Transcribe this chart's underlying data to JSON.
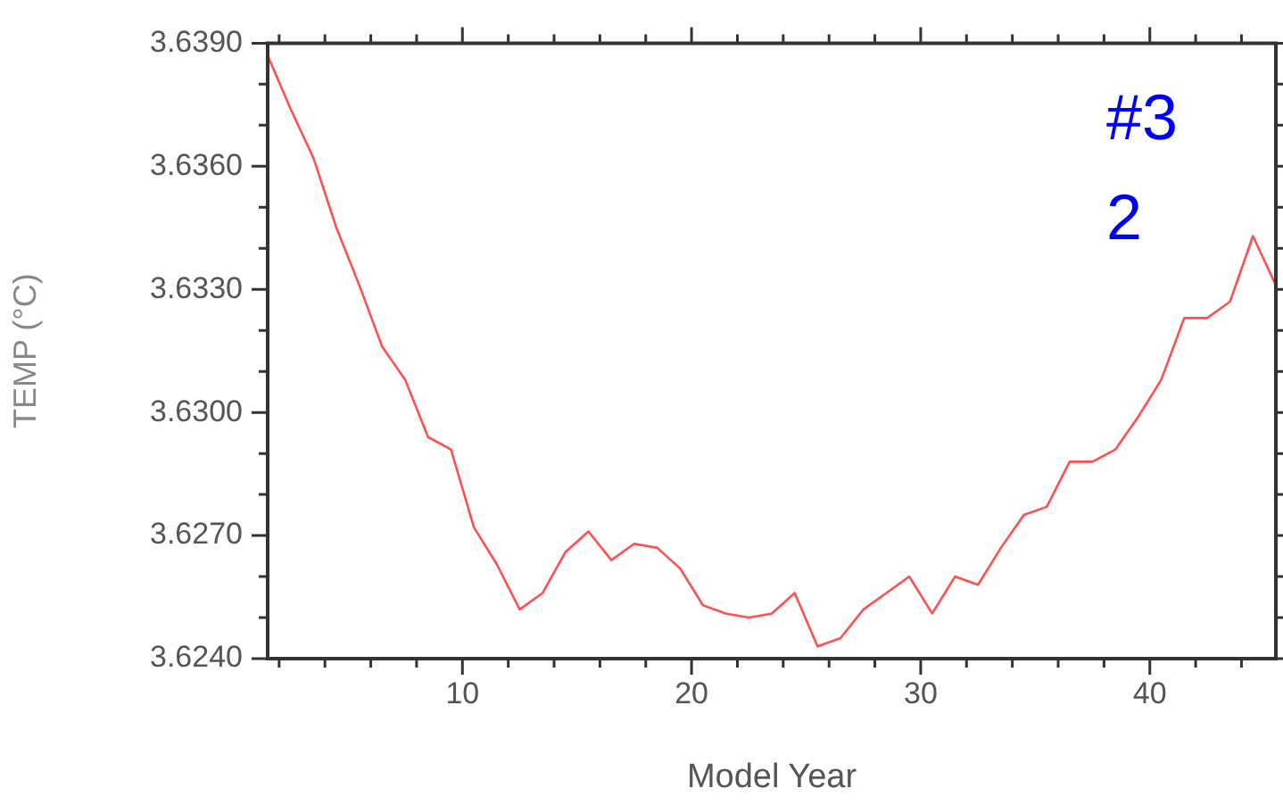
{
  "chart_data": {
    "type": "line",
    "xlabel": "Model Year",
    "ylabel": "TEMP (°C)",
    "annotations": [
      "#32"
    ],
    "x": [
      1.5,
      2.5,
      3.5,
      4.5,
      5.5,
      6.5,
      7.5,
      8.5,
      9.5,
      10.5,
      11.5,
      12.5,
      13.5,
      14.5,
      15.5,
      16.5,
      17.5,
      18.5,
      19.5,
      20.5,
      21.5,
      22.5,
      23.5,
      24.5,
      25.5,
      26.5,
      27.5,
      28.5,
      29.5,
      30.5,
      31.5,
      32.5,
      33.5,
      34.5,
      35.5,
      36.5,
      37.5,
      38.5,
      39.5,
      40.5,
      41.5,
      42.5,
      43.5,
      44.5,
      45.5
    ],
    "series": [
      {
        "color": "#ff5050",
        "values": [
          3.6387,
          3.6374,
          3.6362,
          3.6345,
          3.6331,
          3.6316,
          3.6308,
          3.6294,
          3.6291,
          3.6272,
          3.6263,
          3.6252,
          3.6256,
          3.6266,
          3.6271,
          3.6264,
          3.6268,
          3.6267,
          3.6262,
          3.6253,
          3.6251,
          3.625,
          3.6251,
          3.6256,
          3.6243,
          3.6245,
          3.6252,
          3.6256,
          3.626,
          3.6251,
          3.626,
          3.6258,
          3.6267,
          3.6275,
          3.6277,
          3.6288,
          3.6288,
          3.6291,
          3.6299,
          3.6308,
          3.6323,
          3.6323,
          3.6327,
          3.6343,
          3.6331
        ]
      }
    ],
    "xlim": [
      1.5,
      45.5
    ],
    "xticks": [
      {
        "value": 2,
        "label": null
      },
      {
        "value": 4,
        "label": null
      },
      {
        "value": 6,
        "label": null
      },
      {
        "value": 8,
        "label": null
      },
      10,
      {
        "value": 12,
        "label": null
      },
      {
        "value": 14,
        "label": null
      },
      {
        "value": 16,
        "label": null
      },
      {
        "value": 18,
        "label": null
      },
      20,
      {
        "value": 22,
        "label": null
      },
      {
        "value": 24,
        "label": null
      },
      {
        "value": 26,
        "label": null
      },
      {
        "value": 28,
        "label": null
      },
      30,
      {
        "value": 32,
        "label": null
      },
      {
        "value": 34,
        "label": null
      },
      {
        "value": 36,
        "label": null
      },
      {
        "value": 38,
        "label": null
      },
      40,
      {
        "value": 42,
        "label": null
      },
      {
        "value": 44,
        "label": null
      }
    ],
    "ylim": [
      3.624,
      3.639
    ],
    "yticks": [
      {
        "value": 3.624,
        "label": "3.6240"
      },
      {
        "value": 3.625,
        "label": null
      },
      {
        "value": 3.626,
        "label": null
      },
      {
        "value": 3.627,
        "label": "3.6270"
      },
      {
        "value": 3.628,
        "label": null
      },
      {
        "value": 3.629,
        "label": null
      },
      {
        "value": 3.63,
        "label": "3.6300"
      },
      {
        "value": 3.631,
        "label": null
      },
      {
        "value": 3.632,
        "label": null
      },
      {
        "value": 3.633,
        "label": "3.6330"
      },
      {
        "value": 3.634,
        "label": null
      },
      {
        "value": 3.635,
        "label": null
      },
      {
        "value": 3.636,
        "label": "3.6360"
      },
      {
        "value": 3.637,
        "label": null
      },
      {
        "value": 3.638,
        "label": null
      },
      {
        "value": 3.639,
        "label": "3.6390"
      }
    ],
    "grid": false,
    "legend": false,
    "marker": "none",
    "line_style": "solid"
  }
}
